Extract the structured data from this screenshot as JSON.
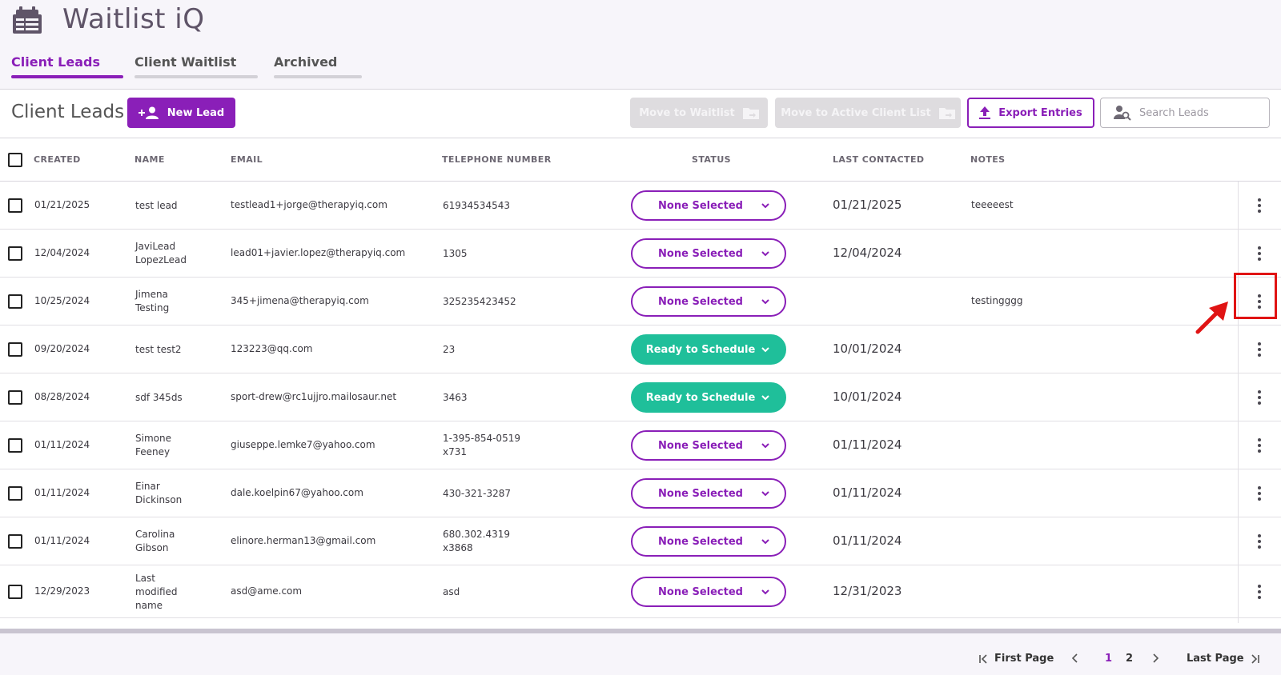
{
  "app": {
    "title": "Waitlist iQ"
  },
  "tabs": [
    {
      "label": "Client Leads",
      "active": true
    },
    {
      "label": "Client Waitlist",
      "active": false
    },
    {
      "label": "Archived",
      "active": false
    }
  ],
  "toolbar": {
    "page_title": "Client Leads",
    "new_lead_label": "New Lead",
    "move_to_waitlist_label": "Move to Waitlist",
    "move_to_active_label": "Move to Active Client List",
    "export_label": "Export Entries",
    "search_placeholder": "Search Leads"
  },
  "table": {
    "columns": [
      "CREATED",
      "NAME",
      "EMAIL",
      "TELEPHONE NUMBER",
      "STATUS",
      "LAST CONTACTED",
      "NOTES"
    ],
    "rows": [
      {
        "created": "01/21/2025",
        "name": [
          "test lead"
        ],
        "email": "testlead1+jorge@therapyiq.com",
        "phone": [
          "61934534543"
        ],
        "status": "None Selected",
        "status_type": "none",
        "last_contacted": "01/21/2025",
        "notes": "teeeeest"
      },
      {
        "created": "12/04/2024",
        "name": [
          "JaviLead",
          "LopezLead"
        ],
        "email": "lead01+javier.lopez@therapyiq.com",
        "phone": [
          "1305"
        ],
        "status": "None Selected",
        "status_type": "none",
        "last_contacted": "12/04/2024",
        "notes": ""
      },
      {
        "created": "10/25/2024",
        "name": [
          "Jimena",
          "Testing"
        ],
        "email": "345+jimena@therapyiq.com",
        "phone": [
          "325235423452"
        ],
        "status": "None Selected",
        "status_type": "none",
        "last_contacted": "",
        "notes": "testingggg"
      },
      {
        "created": "09/20/2024",
        "name": [
          "test test2"
        ],
        "email": "123223@qq.com",
        "phone": [
          "23"
        ],
        "status": "Ready to Schedule",
        "status_type": "ready",
        "last_contacted": "10/01/2024",
        "notes": ""
      },
      {
        "created": "08/28/2024",
        "name": [
          "sdf 345ds"
        ],
        "email": "sport-drew@rc1ujjro.mailosaur.net",
        "phone": [
          "3463"
        ],
        "status": "Ready to Schedule",
        "status_type": "ready",
        "last_contacted": "10/01/2024",
        "notes": ""
      },
      {
        "created": "01/11/2024",
        "name": [
          "Simone",
          "Feeney"
        ],
        "email": "giuseppe.lemke7@yahoo.com",
        "phone": [
          "1-395-854-0519",
          "x731"
        ],
        "status": "None Selected",
        "status_type": "none",
        "last_contacted": "01/11/2024",
        "notes": ""
      },
      {
        "created": "01/11/2024",
        "name": [
          "Einar",
          "Dickinson"
        ],
        "email": "dale.koelpin67@yahoo.com",
        "phone": [
          "430-321-3287"
        ],
        "status": "None Selected",
        "status_type": "none",
        "last_contacted": "01/11/2024",
        "notes": ""
      },
      {
        "created": "01/11/2024",
        "name": [
          "Carolina",
          "Gibson"
        ],
        "email": "elinore.herman13@gmail.com",
        "phone": [
          "680.302.4319",
          "x3868"
        ],
        "status": "None Selected",
        "status_type": "none",
        "last_contacted": "01/11/2024",
        "notes": ""
      },
      {
        "created": "12/29/2023",
        "name": [
          "Last",
          "modified",
          "name"
        ],
        "email": "asd@ame.com",
        "phone": [
          "asd"
        ],
        "status": "None Selected",
        "status_type": "none",
        "last_contacted": "12/31/2023",
        "notes": ""
      }
    ]
  },
  "pagination": {
    "first_label": "First Page",
    "last_label": "Last Page",
    "pages": [
      "1",
      "2"
    ],
    "current_page": "1"
  },
  "colors": {
    "brand": "#8a1fb8",
    "ready": "#1fbf9a",
    "annotation": "#e01414"
  },
  "icons": {
    "logo": "calendar-list-logo-icon",
    "new_lead": "add-person-icon",
    "move": "folder-move-icon",
    "export": "upload-icon",
    "search": "person-search-icon",
    "row_menu": "kebab-menu-icon"
  }
}
